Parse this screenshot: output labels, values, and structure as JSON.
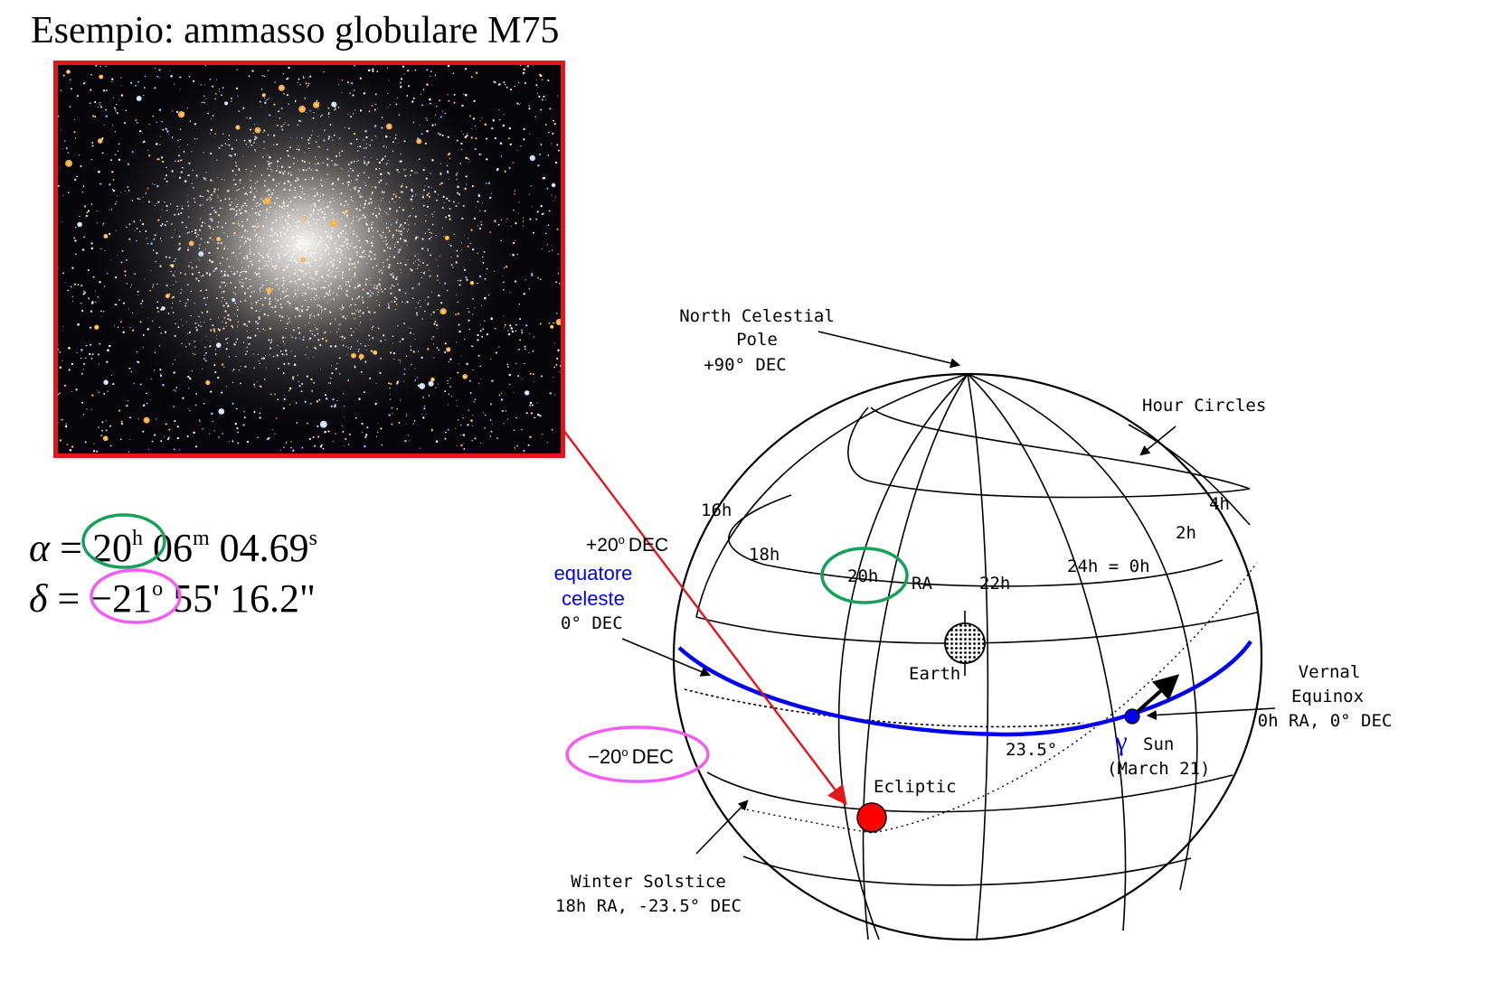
{
  "title": "Esempio: ammasso globulare M75",
  "photo": {
    "alt": "M75 globular cluster"
  },
  "coordinates": {
    "ra": {
      "symbol": "α",
      "eq": "=",
      "h": "20",
      "h_unit": "h",
      "m": "06",
      "m_unit": "m",
      "s": "04.69",
      "s_unit": "s"
    },
    "dec": {
      "symbol": "δ",
      "eq": "=",
      "deg": "−21",
      "deg_unit": "o",
      "rest": "55' 16.2\""
    }
  },
  "sphere": {
    "north_pole": [
      "North Celestial",
      "Pole",
      "+90° DEC"
    ],
    "hour_circles": "Hour Circles",
    "ra_labels": {
      "h16": "16h",
      "h18": "18h",
      "h20": "20h",
      "ra": "RA",
      "h22": "22h",
      "h24": "24h = 0h",
      "h2": "2h",
      "h4": "4h"
    },
    "plus20_dec": {
      "value": "+20",
      "sup": "o",
      "unit": "DEC"
    },
    "celestial_equator": [
      "equatore",
      "celeste"
    ],
    "zero_dec": "0° DEC",
    "earth": "Earth",
    "vernal_equinox": [
      "Vernal",
      "Equinox",
      "0h  RA, 0° DEC"
    ],
    "gamma": "γ",
    "sun": [
      "Sun",
      "(March 21)"
    ],
    "obliquity": "23.5°",
    "minus20_dec": {
      "value": "−20",
      "sup": "o",
      "unit": "DEC"
    },
    "ecliptic": "Ecliptic",
    "winter_solstice": [
      "Winter Solstice",
      "18h RA, -23.5° DEC"
    ]
  },
  "colors": {
    "frame_red": "#e0181b",
    "equator_blue": "#0000ee",
    "ra_circle_green": "#16a05a",
    "dec_circle_magenta": "#f25ff0",
    "object_red": "#ff0000"
  }
}
